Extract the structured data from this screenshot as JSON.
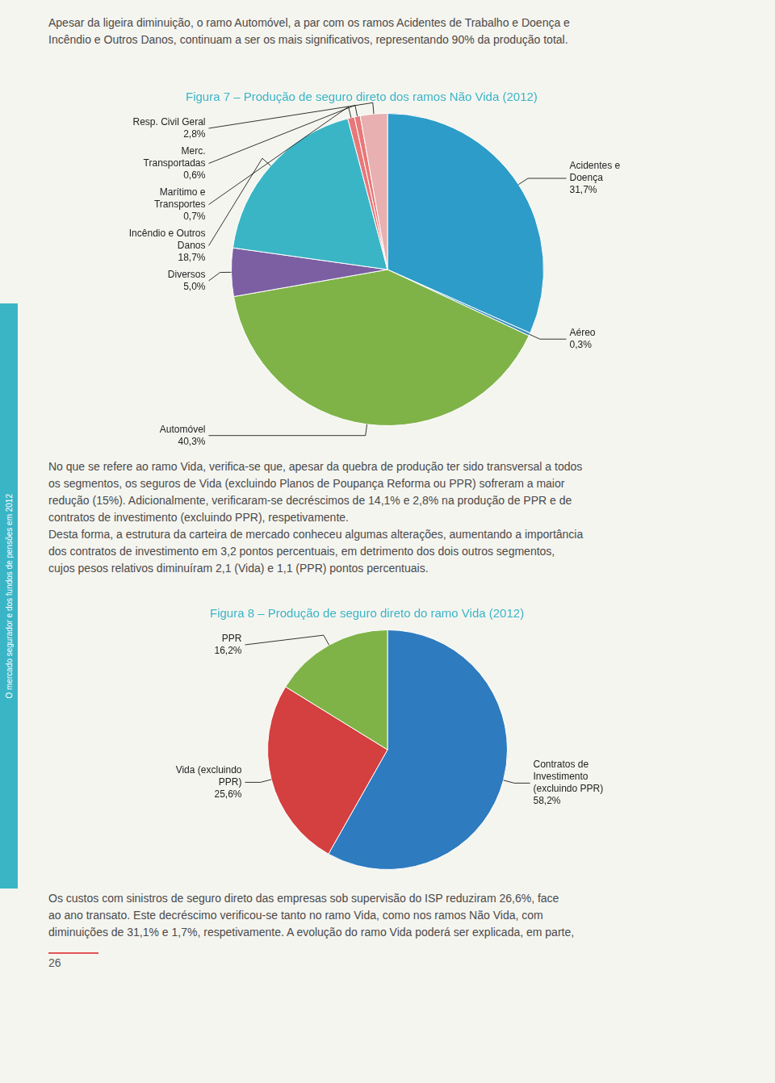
{
  "chart_data": [
    {
      "type": "pie",
      "title": "Figura 7 – Produção de seguro direto dos ramos Não Vida (2012)",
      "categories": [
        "Acidentes e Doença",
        "Aéreo",
        "Automóvel",
        "Diversos",
        "Incêndio e Outros Danos",
        "Marítimo e Transportes",
        "Merc. Transportadas",
        "Resp. Civil Geral"
      ],
      "values": [
        31.7,
        0.3,
        40.3,
        5.0,
        18.7,
        0.7,
        0.6,
        2.8
      ],
      "value_labels": [
        "31,7%",
        "0,3%",
        "40,3%",
        "5,0%",
        "18,7%",
        "0,7%",
        "0,6%",
        "2,8%"
      ],
      "colors": [
        "#2d9cc8",
        "#3a8fba",
        "#7fb348",
        "#7b5fa2",
        "#3ab5c5",
        "#e87878",
        "#e87878",
        "#e8b0b0"
      ],
      "data_labels": true,
      "annotations": [
        "O mercado segurador e dos fundos de pensões em 2012",
        "Apesar da ligeira diminuição, o ramo Automóvel, a par com os ramos Acidentes de Trabalho e Doença e",
        "Incêndio e Outros Danos, continuam a ser os mais significativos, representando 90% da produção total.",
        "No que se refere ao ramo Vida, verifica-se que, apesar da quebra de produção ter sido transversal a todos",
        "os segmentos, os seguros de Vida (excluindo Planos de Poupança Reforma ou PPR) sofreram a maior",
        "redução (15%). Adicionalmente, verificaram-se decréscimos de 14,1% e 2,8% na produção de PPR e de",
        "contratos de investimento (excluindo PPR), respetivamente.",
        "Desta forma, a estrutura da carteira de mercado conheceu algumas alterações, aumentando a importância",
        "dos contratos de investimento em 3,2 pontos percentuais, em detrimento dos dois outros segmentos,",
        "cujos pesos relativos diminuíram 2,1 (Vida) e 1,1 (PPR) pontos percentuais."
      ]
    },
    {
      "type": "pie",
      "title": "Figura 8 – Produção de seguro direto do ramo Vida (2012)",
      "categories": [
        "Contratos de Investimento (excluindo PPR)",
        "Vida (excluindo PPR)",
        "PPR"
      ],
      "values": [
        58.2,
        25.6,
        16.2
      ],
      "value_labels": [
        "58,2%",
        "25,6%",
        "16,2%"
      ],
      "colors": [
        "#2e7bbf",
        "#d43f3f",
        "#7fb348"
      ],
      "data_labels": true,
      "annotations": [
        "Os custos com sinistros de seguro direto das empresas sob supervisão do ISP reduziram 26,6%, face",
        "ao ano transato. Este decréscimo verificou-se tanto no ramo Vida, como nos ramos Não Vida, com",
        "diminuições de 31,1% e 1,7%, respetivamente. A evolução do ramo Vida poderá ser explicada, em parte,",
        "26"
      ]
    }
  ]
}
